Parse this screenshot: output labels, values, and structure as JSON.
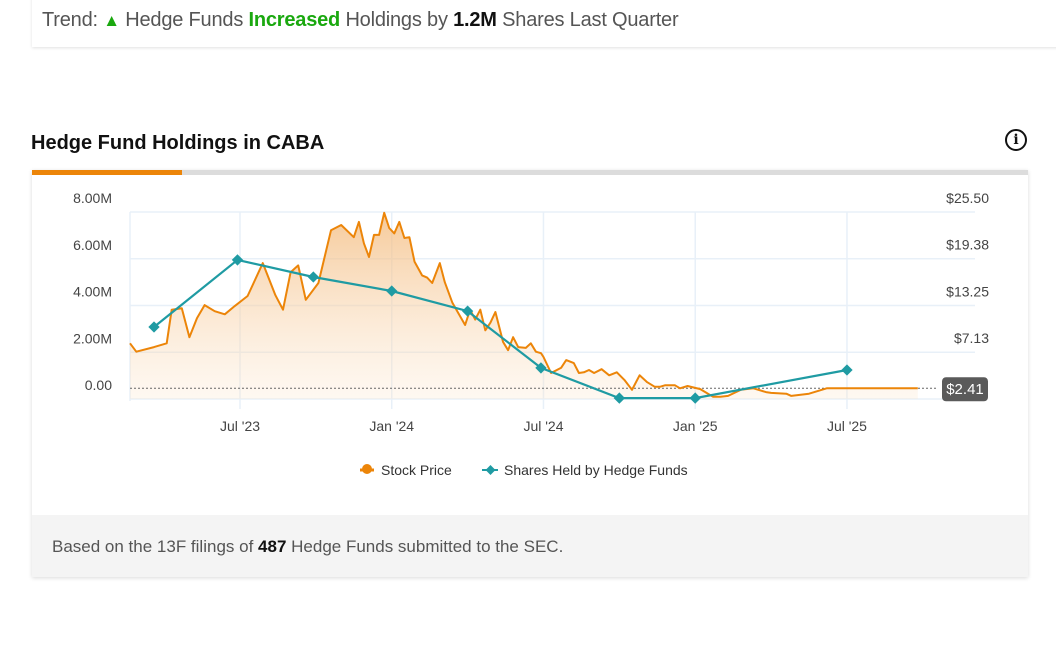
{
  "trend": {
    "prefix": "Trend:",
    "arrow": "▲",
    "part1": "Hedge Funds",
    "direction": "Increased",
    "part2": "Holdings by",
    "amount": "1.2M",
    "part3": "Shares Last Quarter",
    "up_color": "#1aa80f"
  },
  "section": {
    "title": "Hedge Fund Holdings in CABA",
    "info_icon": "i"
  },
  "footer": {
    "prefix": "Based on the 13F filings of",
    "count": "487",
    "suffix": "Hedge Funds submitted to the SEC."
  },
  "chart_data": {
    "type": "line",
    "title": "Hedge Fund Holdings in CABA",
    "x_unit": "months since Jan 2023",
    "x_ticks": [
      {
        "x": 6,
        "label": "Jul '23"
      },
      {
        "x": 12,
        "label": "Jan '24"
      },
      {
        "x": 18,
        "label": "Jul '24"
      },
      {
        "x": 24,
        "label": "Jan '25"
      },
      {
        "x": 30,
        "label": "Jul '25"
      }
    ],
    "xlim": [
      1.65,
      35.0
    ],
    "y_left": {
      "ticks": [
        "0.00",
        "2.00M",
        "4.00M",
        "6.00M",
        "8.00M"
      ],
      "ylim": [
        0,
        8
      ]
    },
    "y_right": {
      "ticks": [
        "$7.13",
        "$13.25",
        "$19.38",
        "$25.50"
      ],
      "tick_values": [
        7.13,
        13.25,
        19.38,
        25.5
      ],
      "ylim": [
        1.0,
        25.5
      ]
    },
    "current_price_label": "$2.41",
    "current_price": 2.41,
    "legend_position": "bottom",
    "series": [
      {
        "name": "Stock Price",
        "axis": "right",
        "color": "#ec8509",
        "x": [
          1.65,
          1.9,
          2.6,
          3.1,
          3.3,
          3.7,
          4.0,
          4.3,
          4.6,
          5.0,
          5.4,
          5.8,
          6.3,
          6.9,
          7.4,
          7.7,
          8.0,
          8.3,
          8.6,
          9.1,
          9.6,
          10.0,
          10.5,
          10.7,
          10.9,
          11.1,
          11.3,
          11.5,
          11.7,
          11.9,
          12.1,
          12.3,
          12.5,
          12.7,
          12.9,
          13.2,
          13.4,
          13.6,
          13.9,
          14.1,
          14.4,
          14.9,
          15.1,
          15.3,
          15.5,
          15.7,
          15.9,
          16.1,
          16.4,
          16.6,
          16.8,
          17.0,
          17.3,
          17.5,
          17.7,
          17.9,
          18.0,
          18.3,
          18.7,
          18.9,
          19.2,
          19.4,
          19.6,
          19.8,
          20.0,
          20.3,
          20.6,
          20.9,
          21.2,
          21.5,
          21.8,
          22.1,
          22.4,
          22.6,
          22.8,
          23.2,
          23.4,
          23.7,
          24.2,
          24.4,
          24.7,
          25.0,
          25.3,
          25.8,
          26.3,
          26.8,
          27.0,
          27.6,
          27.8,
          28.5,
          29.2,
          29.8,
          30.4,
          31.1,
          31.6,
          32.3,
          32.8
        ],
        "y": [
          8.3,
          7.2,
          7.8,
          8.3,
          12.7,
          12.9,
          9.1,
          11.6,
          13.3,
          12.5,
          12.1,
          13.2,
          14.5,
          18.8,
          14.6,
          12.7,
          17.6,
          18.5,
          14.0,
          16.2,
          23.1,
          23.8,
          22.2,
          24.2,
          21.4,
          19.6,
          22.5,
          22.5,
          25.4,
          23.4,
          22.7,
          24.2,
          22.1,
          22.2,
          19.0,
          17.2,
          16.9,
          16.2,
          18.8,
          16.3,
          13.6,
          10.7,
          12.7,
          11.4,
          12.7,
          10.0,
          11.0,
          12.4,
          8.5,
          7.4,
          9.1,
          7.8,
          7.7,
          8.3,
          7.2,
          7.0,
          6.5,
          4.4,
          5.1,
          6.1,
          5.7,
          4.4,
          4.5,
          4.8,
          4.4,
          4.9,
          4.1,
          4.5,
          3.5,
          2.2,
          4.1,
          3.2,
          2.6,
          2.6,
          2.8,
          2.8,
          2.4,
          2.7,
          2.3,
          1.9,
          1.3,
          1.3,
          1.4,
          2.2,
          2.4,
          1.9,
          1.8,
          1.7,
          1.4,
          1.7,
          2.4,
          2.4,
          2.41,
          2.41,
          2.41,
          2.41,
          2.41
        ]
      },
      {
        "name": "Shares Held by Hedge Funds",
        "axis": "left",
        "unit": "M shares",
        "color": "#1f9ba3",
        "x": [
          2.6,
          5.9,
          8.9,
          12.0,
          15.0,
          17.9,
          21.0,
          24.0,
          30.0
        ],
        "y": [
          3.08,
          5.95,
          5.22,
          4.62,
          3.76,
          1.33,
          0.04,
          0.04,
          1.24
        ]
      }
    ]
  }
}
